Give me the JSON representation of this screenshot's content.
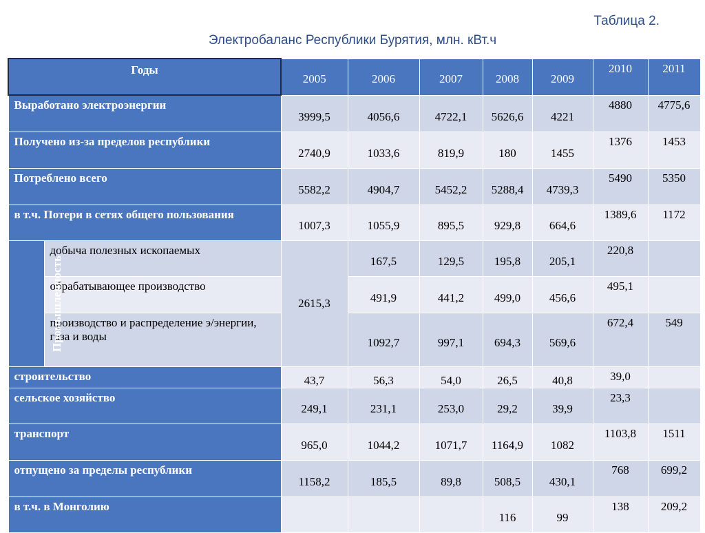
{
  "caption": "Таблица 2.",
  "title": "Электробаланс Республики Бурятия, млн. кВт.ч",
  "header": {
    "label": "Годы",
    "years": [
      "2005",
      "2006",
      "2007",
      "2008",
      "2009",
      "2010",
      "2011"
    ]
  },
  "industry_label": "Промышленность",
  "rows": [
    {
      "label": "Выработано электроэнергии",
      "values": [
        "3999,5",
        "4056,6",
        "4722,1",
        "5626,6",
        "4221",
        "4880",
        "4775,6"
      ]
    },
    {
      "label": "Получено из-за пределов республики",
      "values": [
        "2740,9",
        "1033,6",
        "819,9",
        "180",
        "1455",
        "1376",
        "1453"
      ]
    },
    {
      "label": "Потреблено всего",
      "values": [
        "5582,2",
        "4904,7",
        "5452,2",
        "5288,4",
        "4739,3",
        "5490",
        "5350"
      ]
    },
    {
      "label": "в т.ч. Потери в сетях общего пользования",
      "values": [
        "1007,3",
        "1055,9",
        "895,5",
        "929,8",
        "664,6",
        "1389,6",
        "1172"
      ]
    }
  ],
  "industry_2005": "2615,3",
  "industry_rows": [
    {
      "label": "добыча полезных ископаемых",
      "values": [
        "167,5",
        "129,5",
        "195,8",
        "205,1",
        "220,8",
        ""
      ]
    },
    {
      "label": "обрабатывающее производство",
      "values": [
        "491,9",
        "441,2",
        "499,0",
        "456,6",
        "495,1",
        ""
      ]
    },
    {
      "label": "производство и распределение э/энергии, газа и воды",
      "values": [
        "1092,7",
        "997,1",
        "694,3",
        "569,6",
        "672,4",
        "549"
      ]
    }
  ],
  "rows2": [
    {
      "label": "строительство",
      "values": [
        "43,7",
        "56,3",
        "54,0",
        "26,5",
        "40,8",
        "39,0",
        ""
      ]
    },
    {
      "label": "сельское хозяйство",
      "values": [
        "249,1",
        "231,1",
        "253,0",
        "29,2",
        "39,9",
        "23,3",
        ""
      ]
    },
    {
      "label": "транспорт",
      "values": [
        "965,0",
        "1044,2",
        "1071,7",
        "1164,9",
        "1082",
        "1103,8",
        "1511"
      ]
    },
    {
      "label": "отпущено за пределы республики",
      "values": [
        "1158,2",
        "185,5",
        "89,8",
        "508,5",
        "430,1",
        "768",
        "699,2"
      ]
    },
    {
      "label": "в т.ч. в Монголию",
      "values": [
        "",
        "",
        "",
        "116",
        "99",
        "138",
        "209,2"
      ]
    }
  ]
}
